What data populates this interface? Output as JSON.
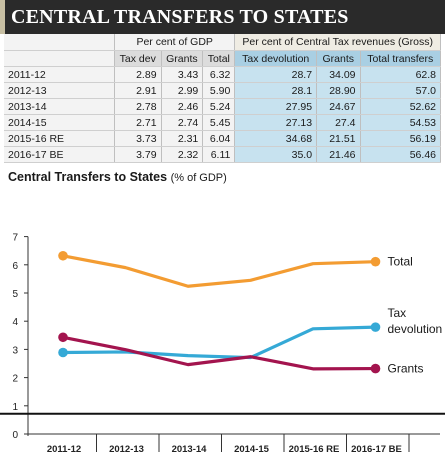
{
  "header": {
    "title": "CENTRAL TRANSFERS TO STATES"
  },
  "table": {
    "group_gdp": "Per cent of GDP",
    "group_tax": "Per cent of Central Tax revenues (Gross)",
    "columns": [
      "Tax dev",
      "Grants",
      "Total",
      "Tax devolution",
      "Grants",
      "Total transfers"
    ],
    "rows": [
      {
        "year": "2011-12",
        "cells": [
          "2.89",
          "3.43",
          "6.32",
          "28.7",
          "34.09",
          "62.8"
        ]
      },
      {
        "year": "2012-13",
        "cells": [
          "2.91",
          "2.99",
          "5.90",
          "28.1",
          "28.90",
          "57.0"
        ]
      },
      {
        "year": "2013-14",
        "cells": [
          "2.78",
          "2.46",
          "5.24",
          "27.95",
          "24.67",
          "52.62"
        ]
      },
      {
        "year": "2014-15",
        "cells": [
          "2.71",
          "2.74",
          "5.45",
          "27.13",
          "27.4",
          "54.53"
        ]
      },
      {
        "year": "2015-16 RE",
        "cells": [
          "3.73",
          "2.31",
          "6.04",
          "34.68",
          "21.51",
          "56.19"
        ]
      },
      {
        "year": "2016-17 BE",
        "cells": [
          "3.79",
          "2.32",
          "6.11",
          "35.0",
          "21.46",
          "56.46"
        ]
      }
    ]
  },
  "chart_data": {
    "type": "line",
    "title": "Central Transfers to States",
    "title_unit": "(% of GDP)",
    "categories": [
      "2011-12",
      "2012-13",
      "2013-14",
      "2014-15",
      "2015-16 RE",
      "2016-17 BE"
    ],
    "series": [
      {
        "name": "Total",
        "color": "#f39c32",
        "values": [
          6.32,
          5.9,
          5.24,
          5.45,
          6.04,
          6.11
        ]
      },
      {
        "name": "Tax devolution",
        "label_lines": [
          "Tax",
          "devolution"
        ],
        "color": "#35a9d6",
        "values": [
          2.89,
          2.91,
          2.78,
          2.71,
          3.73,
          3.79
        ]
      },
      {
        "name": "Grants",
        "color": "#a3144e",
        "values": [
          3.43,
          2.99,
          2.46,
          2.74,
          2.31,
          2.32
        ]
      }
    ],
    "yticks": [
      0,
      1,
      2,
      3,
      4,
      5,
      6,
      7
    ],
    "ylim": [
      0,
      7
    ],
    "axis_break": true,
    "grid": false,
    "xlabel": "",
    "ylabel": ""
  }
}
